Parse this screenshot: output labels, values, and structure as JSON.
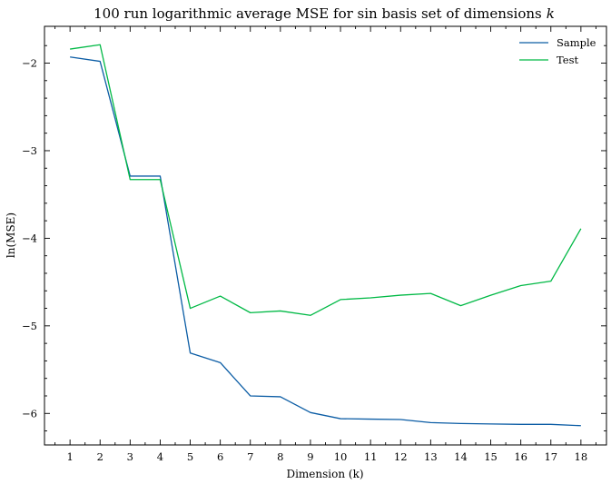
{
  "chart_data": {
    "type": "line",
    "title": "100 run logarithmic average MSE for sin basis set of dimensions",
    "title_italic_var": "k",
    "xlabel": "Dimension (k)",
    "ylabel": "ln(MSE)",
    "x": [
      1,
      2,
      3,
      4,
      5,
      6,
      7,
      8,
      9,
      10,
      11,
      12,
      13,
      14,
      15,
      16,
      17,
      18
    ],
    "xlim": [
      0.15,
      18.85
    ],
    "ylim": [
      -6.36,
      -1.58
    ],
    "yticks": [
      -2,
      -3,
      -4,
      -5,
      -6
    ],
    "ytick_labels": [
      "−2",
      "−3",
      "−4",
      "−5",
      "−6"
    ],
    "grid": false,
    "legend_position": "top-right",
    "series": [
      {
        "name": "Sample",
        "color": "#0C5DA5",
        "values": [
          -1.93,
          -1.98,
          -3.29,
          -3.29,
          -5.31,
          -5.42,
          -5.8,
          -5.81,
          -5.99,
          -6.06,
          -6.065,
          -6.07,
          -6.105,
          -6.115,
          -6.12,
          -6.125,
          -6.125,
          -6.14
        ]
      },
      {
        "name": "Test",
        "color": "#00B945",
        "values": [
          -1.84,
          -1.79,
          -3.33,
          -3.33,
          -4.8,
          -4.66,
          -4.85,
          -4.83,
          -4.88,
          -4.7,
          -4.68,
          -4.65,
          -4.63,
          -4.77,
          -4.65,
          -4.54,
          -4.49,
          -3.89
        ]
      }
    ]
  }
}
